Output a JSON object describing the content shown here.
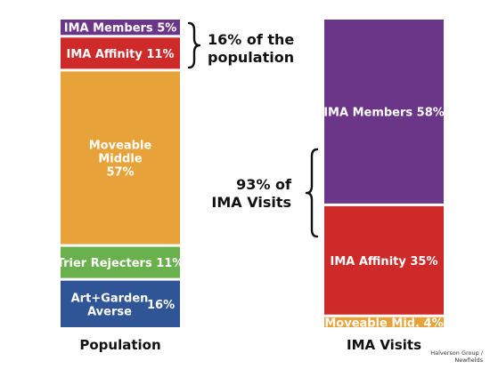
{
  "chart_data": {
    "type": "stacked-bar",
    "bars": [
      {
        "name": "Population",
        "segments": [
          {
            "label": "Art+Garden Averse 16%",
            "lines": [
              "Art+Garden",
              "Averse"
            ],
            "pct_text": "16%",
            "value": 16,
            "color": "#2f5597"
          },
          {
            "label": "Trier Rejecters 11%",
            "lines": [
              "Trier Rejecters 11%"
            ],
            "value": 11,
            "color": "#6ab04c"
          },
          {
            "label": "Moveable Middle 57%",
            "lines": [
              "Moveable",
              "Middle",
              "57%"
            ],
            "value": 57,
            "color": "#e8a23a"
          },
          {
            "label": "IMA Affinity 11%",
            "lines": [
              "IMA Affinity 11%"
            ],
            "value": 11,
            "color": "#cf2a2a"
          },
          {
            "label": "IMA Members 5%",
            "lines": [
              "IMA Members 5%"
            ],
            "value": 5,
            "color": "#6b3588"
          }
        ]
      },
      {
        "name": "IMA Visits",
        "segments": [
          {
            "label": "Moveable Mid. 4%",
            "lines": [
              "Moveable Mid. 4%"
            ],
            "value": 4,
            "color": "#e8a23a"
          },
          {
            "label": "IMA Affinity 35%",
            "lines": [
              "IMA Affinity 35%"
            ],
            "value": 35,
            "color": "#cf2a2a"
          },
          {
            "label": "IMA Members 58%",
            "lines": [
              "IMA Members 58%"
            ],
            "value": 58,
            "color": "#6b3588"
          }
        ]
      }
    ],
    "callouts": [
      {
        "lines": [
          "16% of the",
          "population"
        ]
      },
      {
        "lines": [
          "93% of",
          "IMA Visits"
        ]
      }
    ]
  },
  "source_note": {
    "line1": "Halverson Group /",
    "line2": "Newfields"
  }
}
